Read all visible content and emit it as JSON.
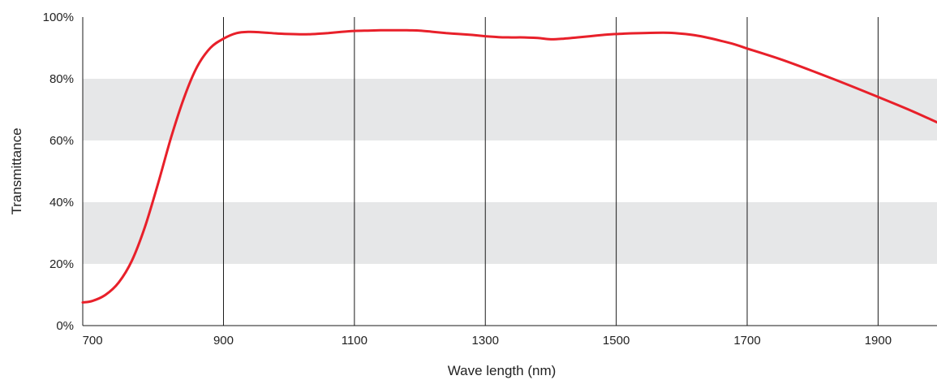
{
  "chart_data": {
    "type": "line",
    "title": "",
    "xlabel": "Wave length (nm)",
    "ylabel": "Transmittance",
    "xlim": [
      685,
      1990
    ],
    "ylim": [
      0,
      100
    ],
    "x_ticks": [
      700,
      900,
      1100,
      1300,
      1500,
      1700,
      1900
    ],
    "y_ticks": [
      0,
      20,
      40,
      60,
      80,
      100
    ],
    "x_tick_labels": [
      "700",
      "900",
      "1100",
      "1300",
      "1500",
      "1700",
      "1900"
    ],
    "y_tick_labels": [
      "0%",
      "20%",
      "40%",
      "60%",
      "80%",
      "100%"
    ],
    "grid": "vertical lines at x ticks; alternating shaded horizontal bands (20-40%, 60-80%)",
    "series_color": "#e8202a",
    "band_color": "#e6e7e8",
    "series": [
      {
        "x": [
          685,
          700,
          720,
          740,
          760,
          780,
          800,
          820,
          840,
          860,
          880,
          900,
          920,
          940,
          960,
          980,
          1000,
          1020,
          1040,
          1060,
          1080,
          1100,
          1120,
          1140,
          1160,
          1180,
          1200,
          1220,
          1240,
          1260,
          1280,
          1300,
          1320,
          1340,
          1360,
          1380,
          1400,
          1420,
          1440,
          1460,
          1480,
          1500,
          1520,
          1540,
          1560,
          1580,
          1600,
          1620,
          1640,
          1660,
          1680,
          1700,
          1750,
          1800,
          1850,
          1900,
          1950,
          1990
        ],
        "values": [
          7.5,
          8,
          10,
          14,
          21,
          32,
          46,
          61,
          74,
          84,
          90,
          93,
          94.8,
          95.2,
          95,
          94.7,
          94.5,
          94.4,
          94.5,
          94.8,
          95.2,
          95.5,
          95.6,
          95.7,
          95.7,
          95.7,
          95.6,
          95.2,
          94.8,
          94.5,
          94.2,
          93.8,
          93.5,
          93.4,
          93.4,
          93.2,
          92.8,
          93,
          93.4,
          93.8,
          94.2,
          94.5,
          94.7,
          94.8,
          94.9,
          94.9,
          94.6,
          94.1,
          93.3,
          92.3,
          91.2,
          89.8,
          86.4,
          82.5,
          78.4,
          74.1,
          69.7,
          65.9
        ]
      }
    ]
  }
}
